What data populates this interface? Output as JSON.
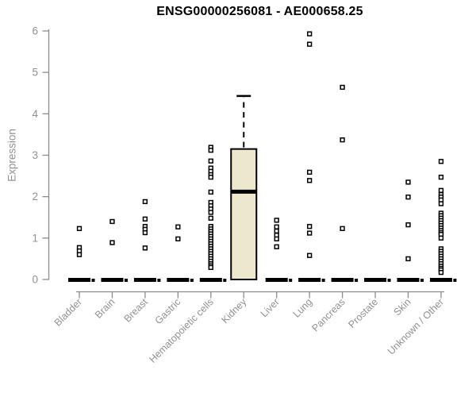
{
  "chart_data": {
    "type": "box",
    "title": "ENSG00000256081 - AE000658.25",
    "ylabel": "Expression",
    "xlabel": "",
    "ylim": [
      0,
      6
    ],
    "yticks": [
      0,
      1,
      2,
      3,
      4,
      5,
      6
    ],
    "grid": false,
    "legend": null,
    "categories": [
      "Bladder",
      "Brain",
      "Breast",
      "Gastric",
      "Hematopoietic cells",
      "Kidney",
      "Liver",
      "Lung",
      "Pancreas",
      "Prostate",
      "Skin",
      "Unknown / Other"
    ],
    "boxes": [
      {
        "category": "Bladder",
        "q1": 0,
        "median": 0,
        "q3": 0,
        "whisker_low": 0,
        "whisker_high": 0,
        "outliers": [
          1.23,
          0.77,
          0.69,
          0.6
        ]
      },
      {
        "category": "Brain",
        "q1": 0,
        "median": 0,
        "q3": 0,
        "whisker_low": 0,
        "whisker_high": 0,
        "outliers": [
          1.4,
          0.89
        ]
      },
      {
        "category": "Breast",
        "q1": 0,
        "median": 0,
        "q3": 0,
        "whisker_low": 0,
        "whisker_high": 0,
        "outliers": [
          1.88,
          1.46,
          1.28,
          1.21,
          1.13,
          0.76
        ]
      },
      {
        "category": "Gastric",
        "q1": 0,
        "median": 0,
        "q3": 0,
        "whisker_low": 0,
        "whisker_high": 0,
        "outliers": [
          1.27,
          0.98
        ]
      },
      {
        "category": "Hematopoietic cells",
        "q1": 0,
        "median": 0,
        "q3": 0,
        "whisker_low": 0,
        "whisker_high": 0,
        "outliers": [
          3.19,
          3.12,
          2.86,
          2.69,
          2.61,
          2.53,
          2.47,
          2.11,
          1.86,
          1.78,
          1.7,
          1.62,
          1.48,
          1.28,
          1.22,
          1.16,
          1.1,
          1.04,
          0.98,
          0.92,
          0.86,
          0.8,
          0.74,
          0.68,
          0.62,
          0.56,
          0.5,
          0.44,
          0.38,
          0.33,
          0.29
        ]
      },
      {
        "category": "Kidney",
        "q1": 0,
        "median": 2.12,
        "q3": 3.15,
        "whisker_low": 0,
        "whisker_high": 4.43,
        "outliers": []
      },
      {
        "category": "Liver",
        "q1": 0,
        "median": 0,
        "q3": 0,
        "whisker_low": 0,
        "whisker_high": 0,
        "outliers": [
          1.43,
          1.27,
          1.17,
          1.07,
          0.98,
          0.79
        ]
      },
      {
        "category": "Lung",
        "q1": 0,
        "median": 0,
        "q3": 0,
        "whisker_low": 0,
        "whisker_high": 0,
        "outliers": [
          5.93,
          5.68,
          2.59,
          2.39,
          1.28,
          1.12,
          0.58
        ]
      },
      {
        "category": "Pancreas",
        "q1": 0,
        "median": 0,
        "q3": 0,
        "whisker_low": 0,
        "whisker_high": 0,
        "outliers": [
          4.64,
          3.37,
          1.23
        ]
      },
      {
        "category": "Prostate",
        "q1": 0,
        "median": 0,
        "q3": 0,
        "whisker_low": 0,
        "whisker_high": 0,
        "outliers": []
      },
      {
        "category": "Skin",
        "q1": 0,
        "median": 0,
        "q3": 0,
        "whisker_low": 0,
        "whisker_high": 0,
        "outliers": [
          2.35,
          1.99,
          1.32,
          0.5
        ]
      },
      {
        "category": "Unknown / Other",
        "q1": 0,
        "median": 0,
        "q3": 0,
        "whisker_low": 0,
        "whisker_high": 0,
        "outliers": [
          2.85,
          2.47,
          2.15,
          2.05,
          1.99,
          1.92,
          1.83,
          1.6,
          1.54,
          1.48,
          1.42,
          1.36,
          1.3,
          1.24,
          1.18,
          1.13,
          1.09,
          1.0,
          0.74,
          0.68,
          0.62,
          0.56,
          0.5,
          0.44,
          0.38,
          0.32,
          0.27,
          0.23,
          0.17
        ]
      }
    ],
    "colors": {
      "box_fill": "#EDE8CD",
      "box_stroke": "#000000",
      "median": "#000000",
      "outlier_fill": "#FFFFFF",
      "outlier_stroke": "#000000",
      "axis": "#8C8C8C",
      "tick_label": "#919191",
      "title": "#000000"
    }
  }
}
